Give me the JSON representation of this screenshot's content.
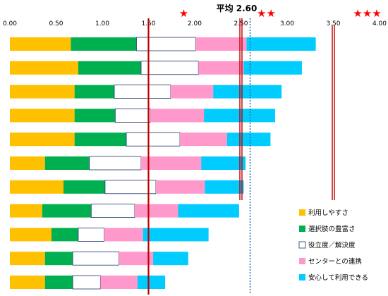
{
  "chart_data": {
    "type": "bar",
    "orientation": "horizontal",
    "stacked": true,
    "xlim": [
      0,
      4.0
    ],
    "x_ticks": [
      "0.00",
      "0.50",
      "1.00",
      "1.50",
      "2.00",
      "2.50",
      "3.00",
      "3.50",
      "4.00"
    ],
    "legend_placement": "bottom-right",
    "grid": false,
    "series": [
      {
        "name": "利用しやすさ",
        "color": "#FFC000",
        "values": [
          0.66,
          0.74,
          0.7,
          0.7,
          0.7,
          0.38,
          0.58,
          0.35,
          0.45,
          0.38,
          0.38
        ]
      },
      {
        "name": "選択肢の豊富さ",
        "color": "#00B050",
        "values": [
          0.71,
          0.68,
          0.43,
          0.44,
          0.56,
          0.48,
          0.45,
          0.53,
          0.29,
          0.3,
          0.3
        ]
      },
      {
        "name": "役立度／解決度",
        "color": "#FFFFFF",
        "stroke": "#1F3864",
        "values": [
          0.64,
          0.62,
          0.61,
          0.38,
          0.58,
          0.56,
          0.55,
          0.47,
          0.28,
          0.5,
          0.3
        ]
      },
      {
        "name": "センターとの連携",
        "color": "#FF99CC",
        "values": [
          0.55,
          0.49,
          0.46,
          0.58,
          0.51,
          0.65,
          0.53,
          0.47,
          0.42,
          0.37,
          0.4
        ]
      },
      {
        "name": "安心して利用できる",
        "color": "#00CCFF",
        "values": [
          0.75,
          0.63,
          0.74,
          0.77,
          0.47,
          0.48,
          0.42,
          0.66,
          0.71,
          0.38,
          0.3
        ]
      }
    ],
    "annotations": [
      {
        "text": "平均 2.60",
        "x": 2.6,
        "style": "dotted",
        "color": "#2E75B6"
      },
      {
        "text": "★",
        "x": 1.5,
        "style": "solid",
        "color": "#C00000"
      },
      {
        "text": "★★",
        "x": 2.5,
        "style": "solid-double",
        "color": "#C00000"
      },
      {
        "text": "★★★",
        "x": 3.5,
        "style": "solid-double",
        "color": "#C00000"
      }
    ]
  }
}
